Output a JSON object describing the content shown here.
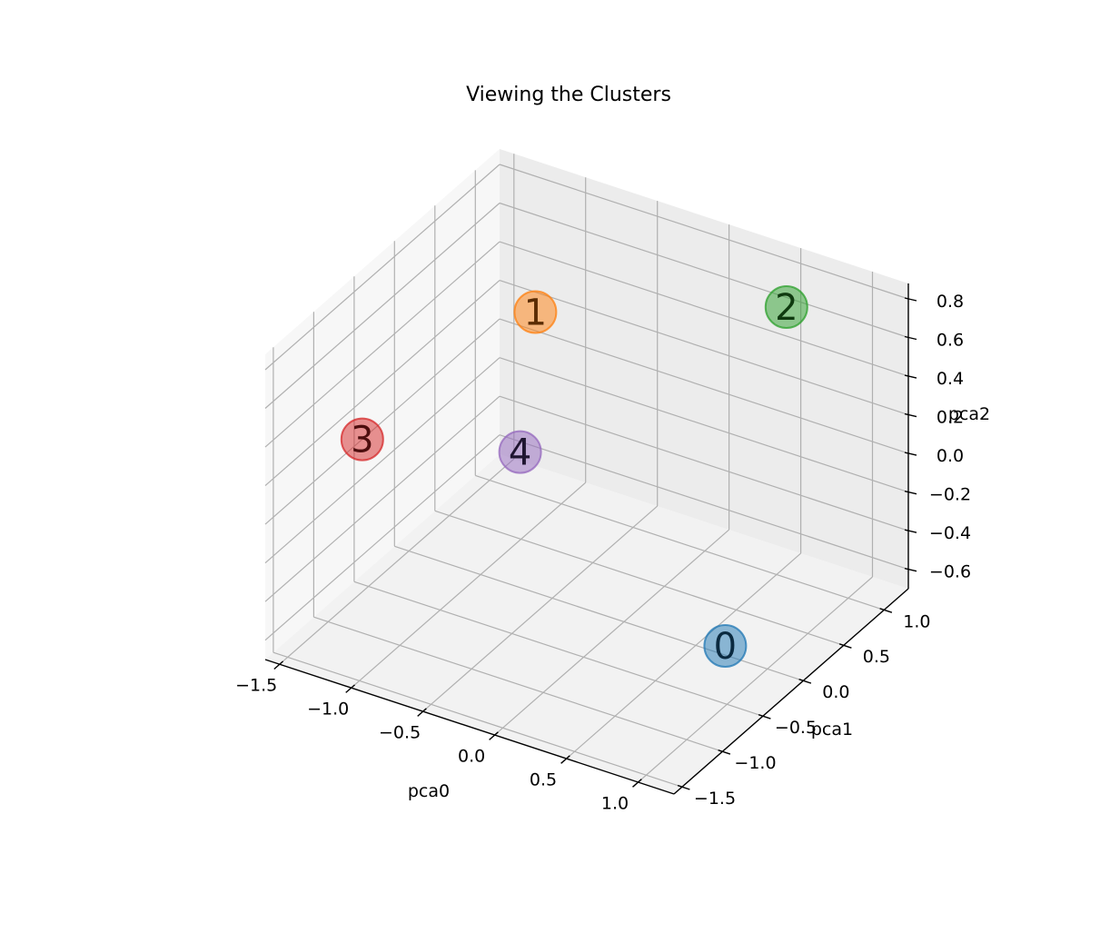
{
  "chart_data": {
    "type": "scatter",
    "projection": "3d",
    "title": "Viewing the Clusters",
    "xlabel": "pca0",
    "ylabel": "pca1",
    "zlabel": "pca2",
    "xlim": [
      -1.6,
      1.25
    ],
    "ylim": [
      -1.6,
      1.3
    ],
    "zlim": [
      -0.7,
      0.88
    ],
    "xticks": [
      -1.5,
      -1.0,
      -0.5,
      0.0,
      0.5,
      1.0
    ],
    "xtick_labels": [
      "−1.5",
      "−1.0",
      "−0.5",
      "0.0",
      "0.5",
      "1.0"
    ],
    "yticks": [
      -1.5,
      -1.0,
      -0.5,
      0.0,
      0.5,
      1.0
    ],
    "ytick_labels": [
      "−1.5",
      "−1.0",
      "−0.5",
      "0.0",
      "0.5",
      "1.0"
    ],
    "zticks": [
      -0.6,
      -0.4,
      -0.2,
      0.0,
      0.2,
      0.4,
      0.6,
      0.8
    ],
    "ztick_labels": [
      "−0.6",
      "−0.4",
      "−0.2",
      "0.0",
      "0.2",
      "0.4",
      "0.6",
      "0.8"
    ],
    "grid": true,
    "points": [
      {
        "label": "0",
        "x": 1.1,
        "y": -0.7,
        "z": -0.3,
        "color": "#1f77b4",
        "text_color": "#0b2a40"
      },
      {
        "label": "1",
        "x": -0.9,
        "y": 0.5,
        "z": 0.5,
        "color": "#ff7f0e",
        "text_color": "#5a2c03"
      },
      {
        "label": "2",
        "x": 0.4,
        "y": 1.3,
        "z": 0.55,
        "color": "#2ca02c",
        "text_color": "#0f3a0f"
      },
      {
        "label": "3",
        "x": -1.6,
        "y": -0.4,
        "z": 0.0,
        "color": "#d62728",
        "text_color": "#4d0e0e"
      },
      {
        "label": "4",
        "x": -0.95,
        "y": 0.4,
        "z": -0.2,
        "color": "#9467bd",
        "text_color": "#1f1530"
      }
    ]
  }
}
